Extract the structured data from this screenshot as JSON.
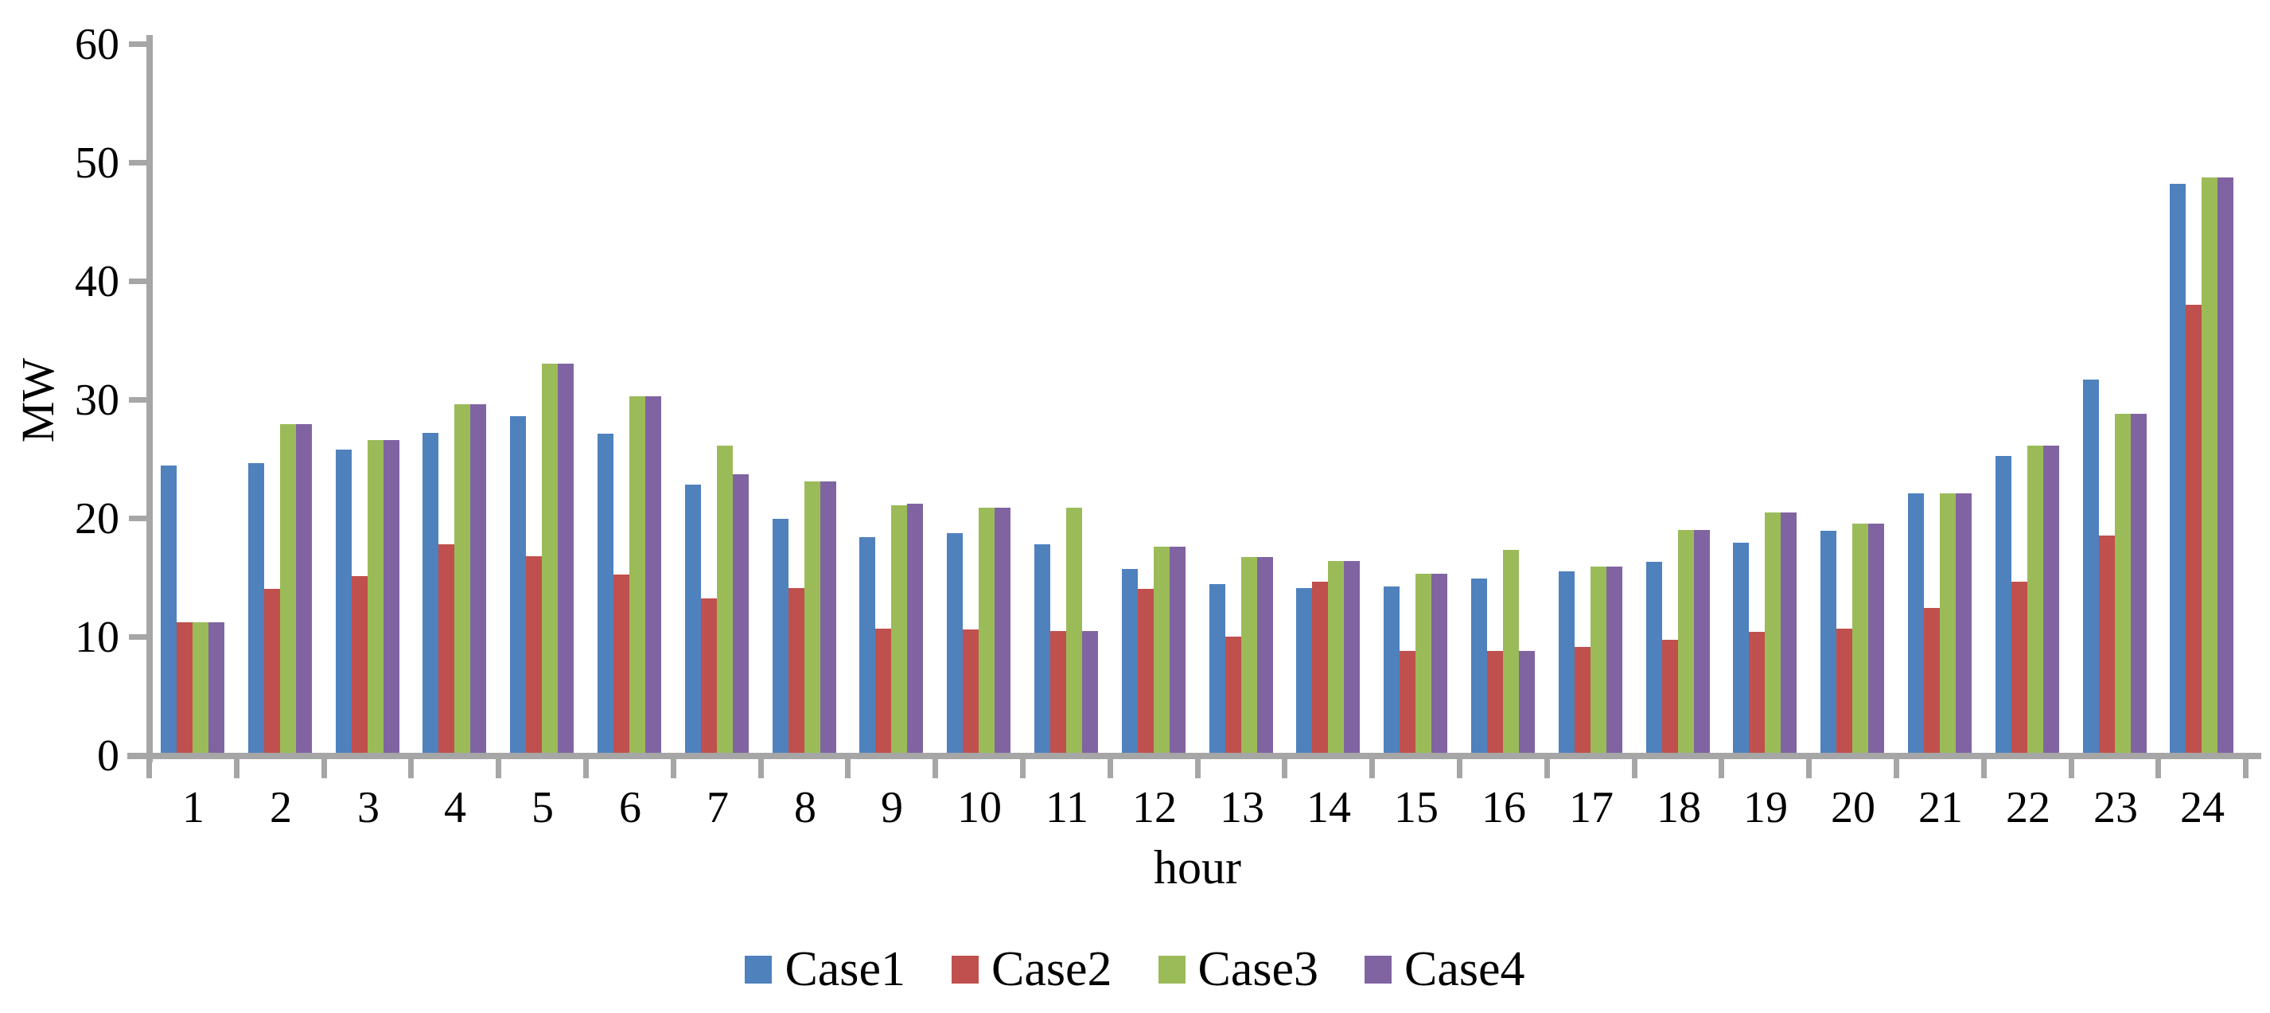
{
  "chart_data": {
    "type": "bar",
    "title": "",
    "xlabel": "hour",
    "ylabel": "MW",
    "ylim": [
      0,
      60
    ],
    "ytick_interval": 10,
    "ytick_labels": [
      "0",
      "10",
      "20",
      "30",
      "40",
      "50",
      "60"
    ],
    "categories": [
      "1",
      "2",
      "3",
      "4",
      "5",
      "6",
      "7",
      "8",
      "9",
      "10",
      "11",
      "12",
      "13",
      "14",
      "15",
      "16",
      "17",
      "18",
      "19",
      "20",
      "21",
      "22",
      "23",
      "24"
    ],
    "series": [
      {
        "name": "Case1",
        "color": "#4F81BD",
        "values": [
          24.2,
          24.4,
          25.6,
          27.0,
          28.4,
          26.9,
          22.6,
          19.7,
          18.2,
          18.5,
          17.6,
          15.5,
          14.2,
          13.9,
          14.0,
          14.7,
          15.3,
          16.1,
          17.7,
          18.7,
          21.9,
          25.0,
          31.5,
          48.0
        ]
      },
      {
        "name": "Case2",
        "color": "#C0504D",
        "values": [
          11.0,
          13.8,
          14.9,
          17.6,
          16.6,
          15.0,
          13.0,
          13.9,
          10.5,
          10.4,
          10.3,
          13.8,
          9.8,
          14.4,
          8.6,
          8.6,
          8.9,
          9.5,
          10.2,
          10.5,
          12.2,
          14.4,
          18.3,
          37.8
        ]
      },
      {
        "name": "Case3",
        "color": "#9BBB59",
        "values": [
          11.0,
          27.7,
          26.4,
          29.4,
          32.8,
          30.1,
          25.9,
          22.9,
          20.9,
          20.7,
          20.7,
          17.4,
          16.5,
          16.2,
          15.1,
          17.1,
          15.7,
          18.8,
          20.3,
          19.3,
          21.9,
          25.9,
          28.6,
          48.5
        ]
      },
      {
        "name": "Case4",
        "color": "#8064A2",
        "values": [
          11.0,
          27.7,
          26.4,
          29.4,
          32.8,
          30.1,
          23.5,
          22.9,
          21.0,
          20.7,
          10.3,
          17.4,
          16.5,
          16.2,
          15.1,
          8.6,
          15.7,
          18.8,
          20.3,
          19.3,
          21.9,
          25.9,
          28.6,
          48.5
        ]
      }
    ],
    "legend_position": "bottom",
    "grid": false,
    "axis_color": "#A6A6A6",
    "text_color": "#000000",
    "background_color": "#FFFFFF"
  }
}
